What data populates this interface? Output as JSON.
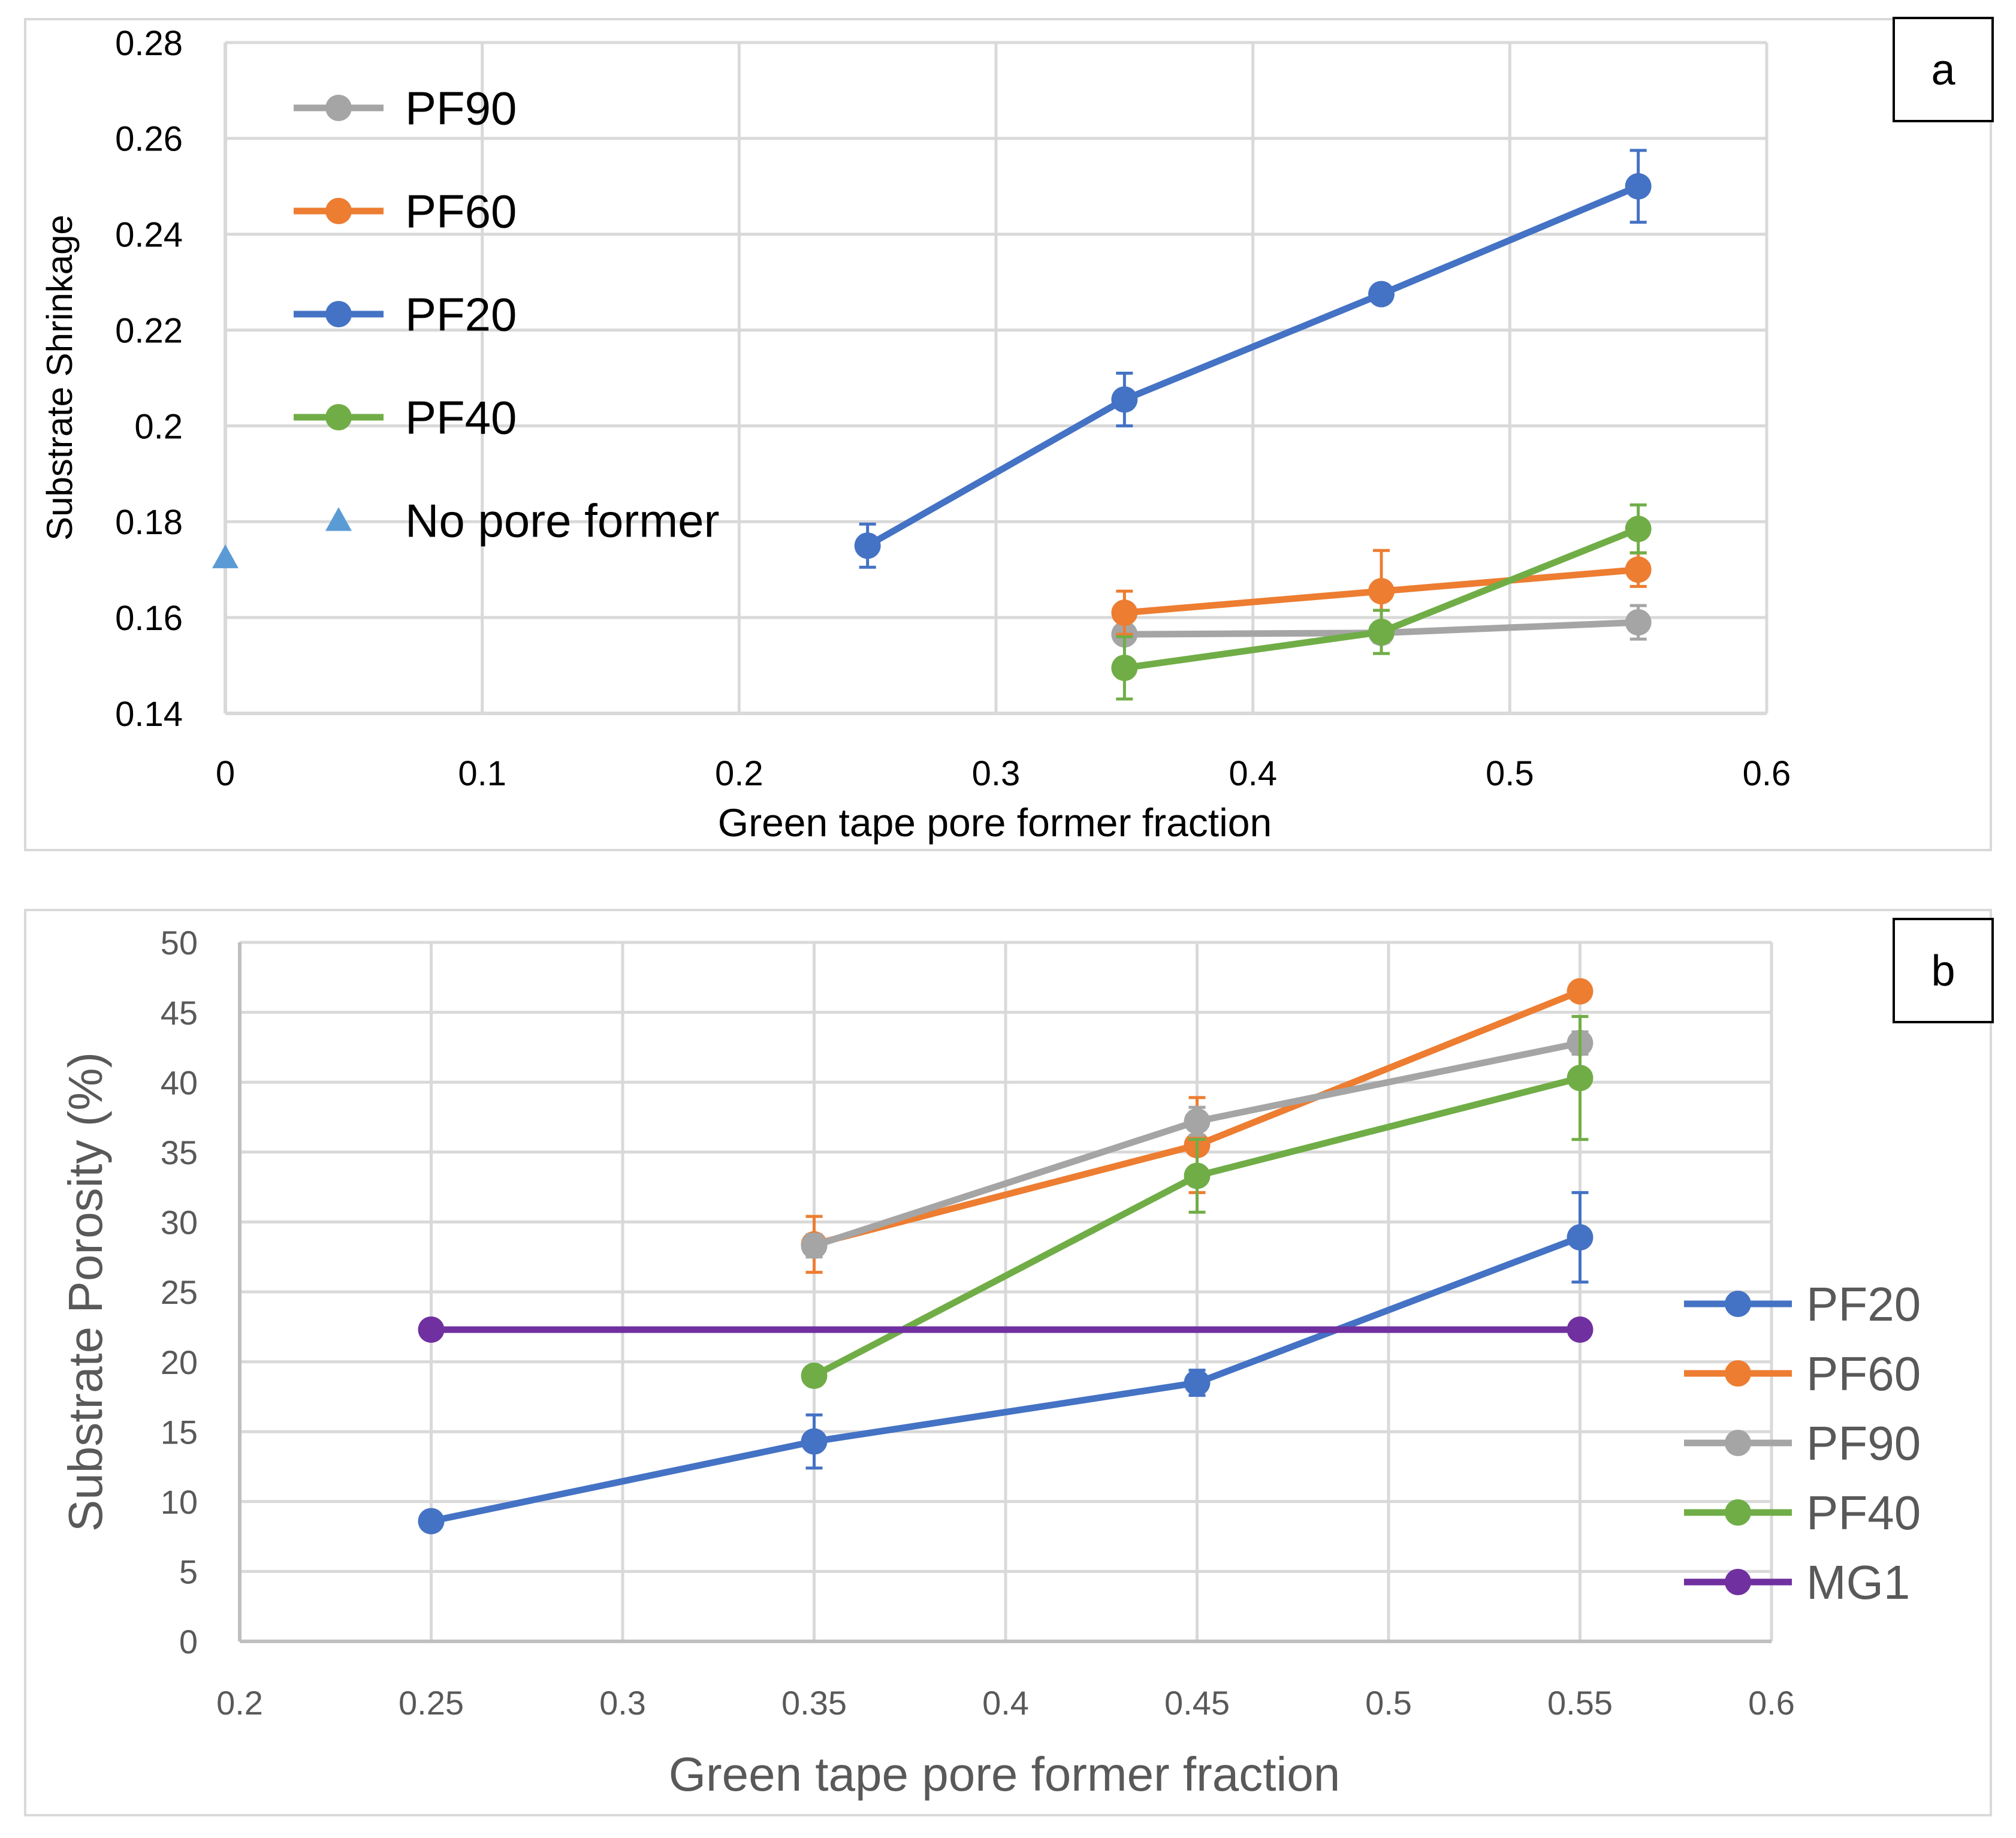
{
  "chart_data": [
    {
      "panel_label": "a",
      "type": "line",
      "title": "",
      "xlabel": "Green tape pore former fraction",
      "ylabel": "Substrate Shrinkage",
      "xlim": [
        0,
        0.6
      ],
      "ylim": [
        0.14,
        0.28
      ],
      "x_ticks": [
        "0",
        "0.1",
        "0.2",
        "0.3",
        "0.4",
        "0.5",
        "0.6"
      ],
      "y_ticks": [
        "0.14",
        "0.16",
        "0.18",
        "0.2",
        "0.22",
        "0.24",
        "0.26",
        "0.28"
      ],
      "legend_position": "top-left",
      "series": [
        {
          "name": "PF90",
          "color": "#a5a5a5",
          "marker": "circle",
          "x": [
            0.35,
            0.45,
            0.55
          ],
          "y": [
            0.1565,
            0.1568,
            0.159
          ],
          "err": [
            0.001,
            0.002,
            0.0035
          ]
        },
        {
          "name": "PF60",
          "color": "#ed7d31",
          "marker": "circle",
          "x": [
            0.35,
            0.45,
            0.55
          ],
          "y": [
            0.161,
            0.1655,
            0.17
          ],
          "err": [
            0.0045,
            0.0085,
            0.0035
          ]
        },
        {
          "name": "PF20",
          "color": "#4472c4",
          "marker": "circle",
          "x": [
            0.25,
            0.35,
            0.45,
            0.55
          ],
          "y": [
            0.175,
            0.2055,
            0.2275,
            0.25
          ],
          "err": [
            0.0045,
            0.0055,
            0.001,
            0.0075
          ]
        },
        {
          "name": "PF40",
          "color": "#70ad47",
          "marker": "circle",
          "x": [
            0.35,
            0.45,
            0.55
          ],
          "y": [
            0.1495,
            0.157,
            0.1785
          ],
          "err": [
            0.0065,
            0.0045,
            0.005
          ]
        },
        {
          "name": "No pore former",
          "color": "#5b9bd5",
          "marker": "triangle",
          "x": [
            0
          ],
          "y": [
            0.1725
          ],
          "err": [
            0
          ]
        }
      ]
    },
    {
      "panel_label": "b",
      "type": "line",
      "title": "",
      "xlabel": "Green tape pore former fraction",
      "ylabel": "Substrate Porosity (%)",
      "xlim": [
        0.2,
        0.6
      ],
      "ylim": [
        0,
        50
      ],
      "x_ticks": [
        "0.2",
        "0.25",
        "0.3",
        "0.35",
        "0.4",
        "0.45",
        "0.5",
        "0.55",
        "0.6"
      ],
      "y_ticks": [
        "0",
        "5",
        "10",
        "15",
        "20",
        "25",
        "30",
        "35",
        "40",
        "45",
        "50"
      ],
      "legend_position": "right",
      "series": [
        {
          "name": "PF20",
          "color": "#4472c4",
          "marker": "circle",
          "x": [
            0.25,
            0.35,
            0.45,
            0.55
          ],
          "y": [
            8.6,
            14.3,
            18.5,
            28.9
          ],
          "err": [
            0,
            1.9,
            0.9,
            3.2
          ]
        },
        {
          "name": "PF60",
          "color": "#ed7d31",
          "marker": "circle",
          "x": [
            0.35,
            0.45,
            0.55
          ],
          "y": [
            28.4,
            35.5,
            46.5
          ],
          "err": [
            2.0,
            3.4,
            0
          ]
        },
        {
          "name": "PF90",
          "color": "#a5a5a5",
          "marker": "circle",
          "x": [
            0.35,
            0.45,
            0.55
          ],
          "y": [
            28.3,
            37.2,
            42.8
          ],
          "err": [
            0.8,
            1.0,
            0.8
          ]
        },
        {
          "name": "PF40",
          "color": "#70ad47",
          "marker": "circle",
          "x": [
            0.35,
            0.45,
            0.55
          ],
          "y": [
            19.0,
            33.3,
            40.3
          ],
          "err": [
            0,
            2.6,
            4.4
          ]
        },
        {
          "name": "MG1",
          "color": "#7030a0",
          "marker": "circle",
          "x": [
            0.25,
            0.55
          ],
          "y": [
            22.3,
            22.3
          ],
          "err": [
            0,
            0
          ]
        }
      ]
    }
  ]
}
